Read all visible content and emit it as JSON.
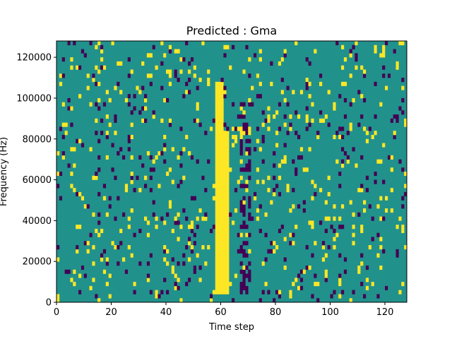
{
  "chart_data": {
    "type": "heatmap",
    "title": "Predicted : Gma",
    "xlabel": "Time step",
    "ylabel": "Frequency (Hz)",
    "xlim": [
      0,
      128
    ],
    "ylim": [
      0,
      128000
    ],
    "x_ticks": [
      0,
      20,
      40,
      60,
      80,
      100,
      120
    ],
    "y_ticks": [
      0,
      20000,
      40000,
      60000,
      80000,
      100000,
      120000
    ],
    "x_tick_labels": [
      "0",
      "20",
      "40",
      "60",
      "80",
      "100",
      "120"
    ],
    "y_tick_labels": [
      "0",
      "20000",
      "40000",
      "60000",
      "80000",
      "100000",
      "120000"
    ],
    "grid": false,
    "colormap": "viridis",
    "levels": {
      "background": "#21918c",
      "high": "#fde725",
      "low": "#440154"
    },
    "yellow_band": {
      "x_start": 58,
      "x_end": 63,
      "y_start": 4000,
      "y_end": 108000
    },
    "dark_band": {
      "x_start": 67,
      "x_end": 71,
      "y_start": 4000,
      "y_end": 98000
    },
    "scatter_seed": 12345,
    "scatter_high_fraction": 0.055,
    "scatter_low_fraction": 0.045
  }
}
